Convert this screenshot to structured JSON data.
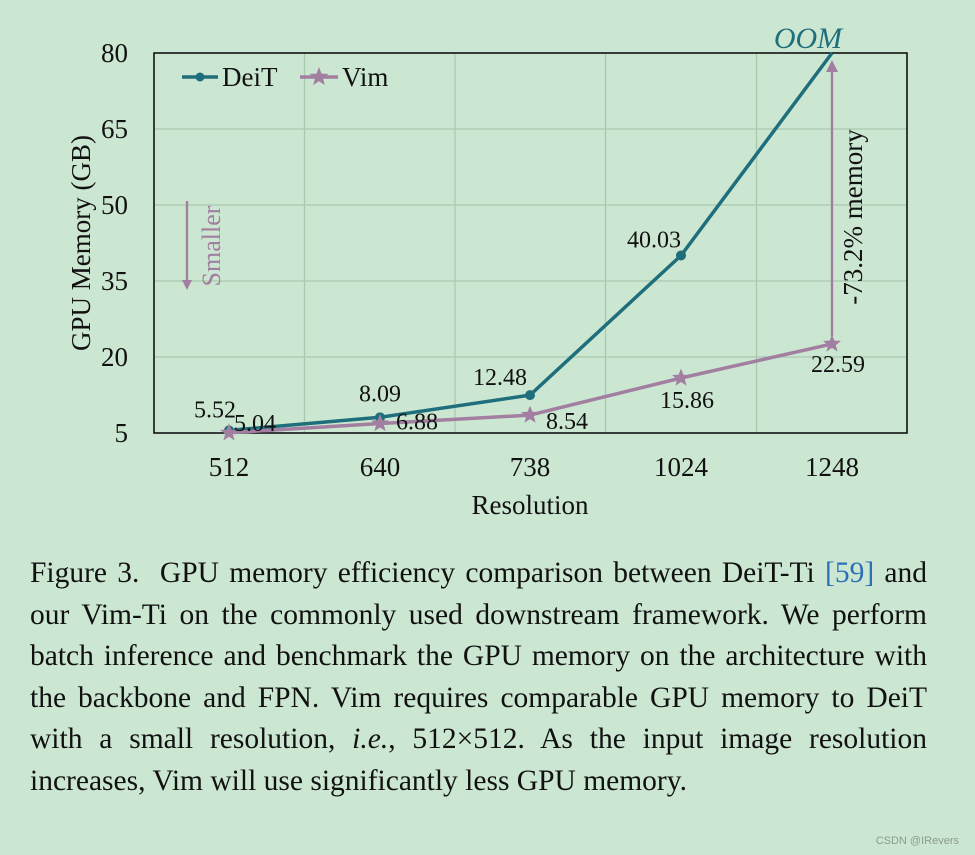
{
  "chart_data": {
    "type": "line",
    "xlabel": "Resolution",
    "ylabel": "GPU Memory (GB)",
    "categories": [
      "512",
      "640",
      "738",
      "1024",
      "1248"
    ],
    "yticks": [
      5,
      20,
      35,
      50,
      65,
      80
    ],
    "ylim": [
      5,
      80
    ],
    "grid": true,
    "legend_position": "top-left",
    "series": [
      {
        "name": "DeiT",
        "color": "#1e6e7c",
        "marker": "circle",
        "values": [
          5.52,
          8.09,
          12.48,
          40.03,
          80
        ],
        "labels": [
          "5.52",
          "8.09",
          "12.48",
          "40.03",
          ""
        ]
      },
      {
        "name": "Vim",
        "color": "#a27fa0",
        "marker": "star",
        "values": [
          5.04,
          6.88,
          8.54,
          15.86,
          22.59
        ],
        "labels": [
          "5.04",
          "6.88",
          "8.54",
          "15.86",
          "22.59"
        ]
      }
    ],
    "annotations": {
      "oom": "OOM",
      "smaller": "Smaller",
      "reduction": "-73.2% memory"
    }
  },
  "caption": {
    "fig_label": "Figure 3.",
    "part1": "GPU memory efficiency comparison between DeiT-Ti ",
    "ref": "[59]",
    "part2": " and our Vim-Ti on the commonly used downstream framework. We perform batch inference and benchmark the GPU memory on the architecture with the backbone and FPN. Vim requires comparable GPU memory to DeiT with a small resolution, ",
    "ie": "i.e.",
    "part3": ", 512×512. As the input image resolution increases, Vim will use significantly less GPU memory."
  },
  "watermark": "CSDN @IRevers"
}
